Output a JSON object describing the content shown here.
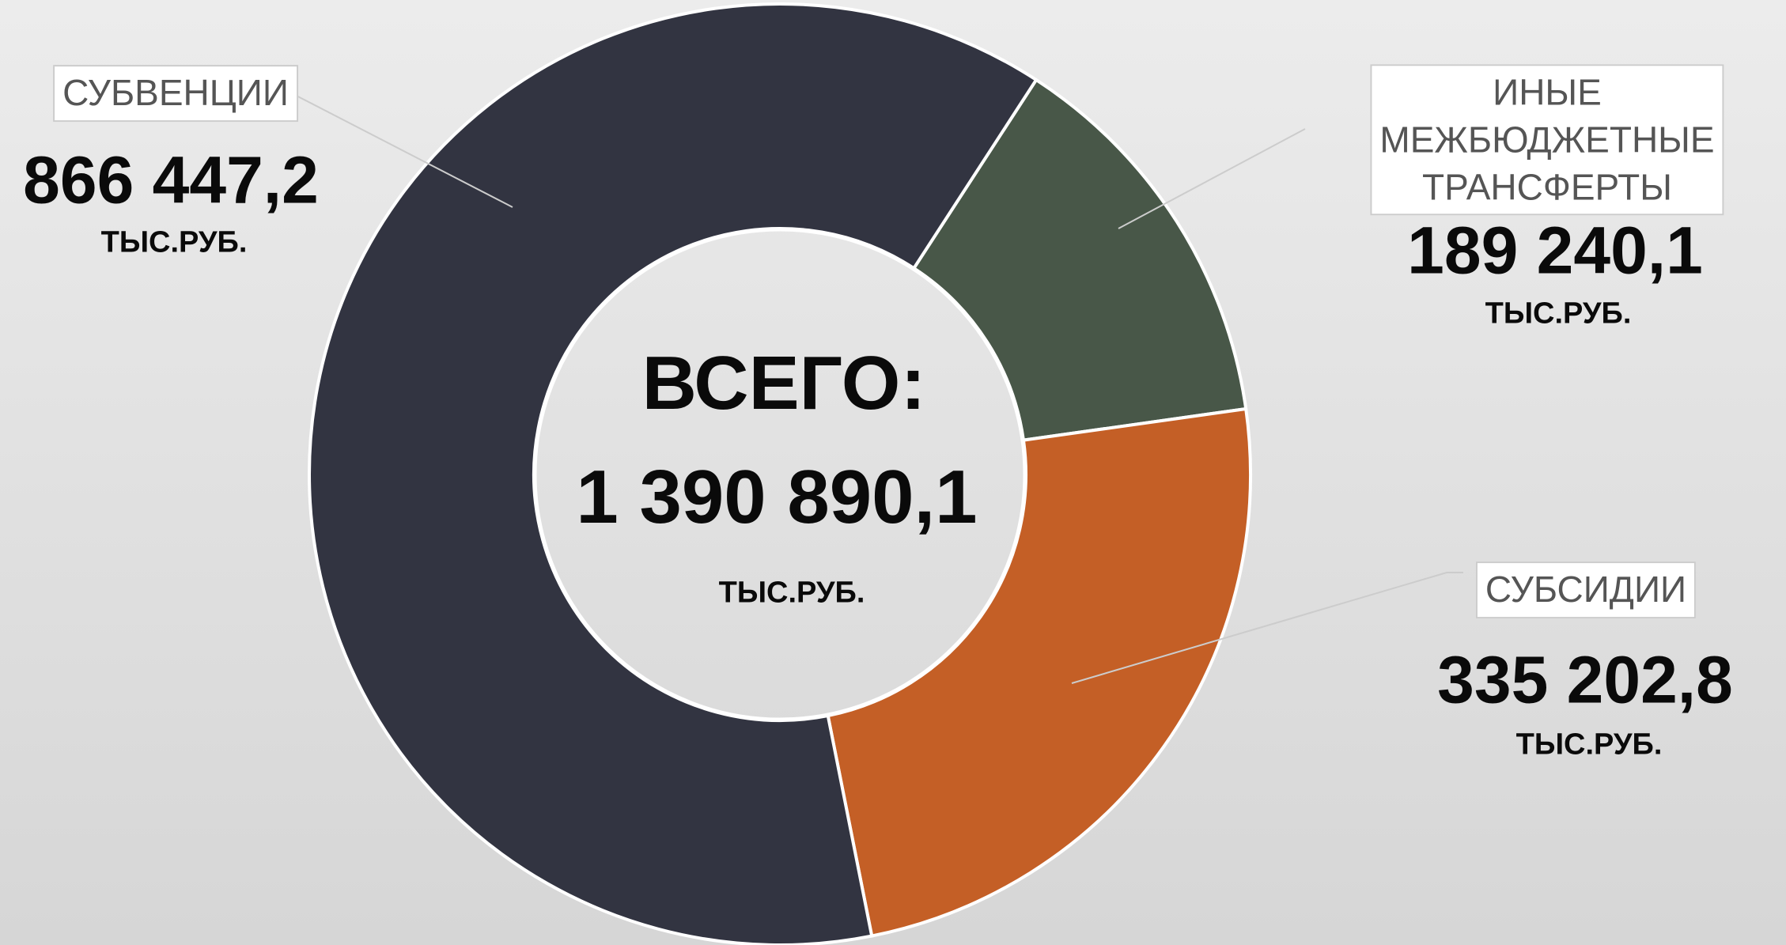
{
  "chart_data": {
    "type": "donut",
    "categories": [
      "ИНЫЕ МЕЖБЮДЖЕТНЫЕ\nТРАНСФЕРТЫ",
      "СУБСИДИИ",
      "СУБВЕНЦИИ"
    ],
    "values": [
      189240.1,
      335202.8,
      866447.2
    ],
    "value_labels": [
      "189 240,1",
      "335 202,8",
      "866 447,2"
    ],
    "colors": [
      "#485748",
      "#c45f26",
      "#323441"
    ],
    "unit": "ТЫС.РУБ.",
    "center_title": "ВСЕГО:",
    "total": 1390890.1,
    "total_label": "1 390 890,1"
  }
}
